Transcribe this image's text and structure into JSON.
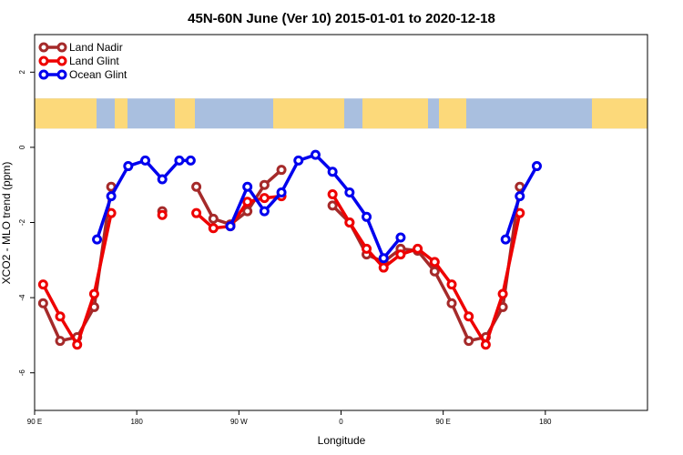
{
  "chart_data": {
    "type": "line",
    "title": "45N-60N June (Ver 10)   2015-01-01 to 2020-12-18",
    "xlabel": "Longitude",
    "ylabel": "XCO2 - MLO trend (ppm)",
    "xlim": [
      90,
      630
    ],
    "ylim": [
      -7,
      3
    ],
    "x_ticks": [
      {
        "value": 90,
        "label": "90 E"
      },
      {
        "value": 180,
        "label": "180"
      },
      {
        "value": 270,
        "label": "90 W"
      },
      {
        "value": 360,
        "label": "0"
      },
      {
        "value": 450,
        "label": "90 E"
      },
      {
        "value": 540,
        "label": "180"
      }
    ],
    "y_ticks": [
      {
        "value": -6,
        "label": "-6"
      },
      {
        "value": -4,
        "label": "-4"
      },
      {
        "value": -2,
        "label": "-2"
      },
      {
        "value": 0,
        "label": "0"
      },
      {
        "value": 2,
        "label": "2"
      }
    ],
    "map_band": {
      "ymin": 0.5,
      "ymax": 1.3,
      "ocean_color": "#a9bfdf",
      "land_color": "#fcd97a"
    },
    "legend_position": "top-left",
    "series": [
      {
        "name": "Land Nadir",
        "color": "#a52a2a",
        "points": [
          [
            97.5,
            -4.15
          ],
          [
            112.5,
            -5.15
          ],
          [
            127.5,
            -5.05
          ],
          [
            142.5,
            -4.25
          ],
          [
            157.5,
            -1.05
          ],
          null,
          [
            202.5,
            -1.7
          ],
          null,
          [
            232.5,
            -1.05
          ],
          [
            247.5,
            -1.9
          ],
          [
            262.5,
            -2.05
          ],
          [
            277.5,
            -1.7
          ],
          [
            292.5,
            -1.0
          ],
          [
            307.5,
            -0.6
          ],
          null,
          [
            352.5,
            -1.55
          ],
          [
            367.5,
            -2.0
          ],
          [
            382.5,
            -2.85
          ],
          [
            397.5,
            -3.05
          ],
          [
            412.5,
            -2.7
          ],
          [
            427.5,
            -2.75
          ],
          [
            442.5,
            -3.3
          ],
          [
            457.5,
            -4.15
          ],
          [
            472.5,
            -5.15
          ],
          [
            487.5,
            -5.05
          ],
          [
            502.5,
            -4.25
          ],
          [
            517.5,
            -1.05
          ]
        ]
      },
      {
        "name": "Land Glint",
        "color": "#ee0000",
        "points": [
          [
            97.5,
            -3.65
          ],
          [
            112.5,
            -4.5
          ],
          [
            127.5,
            -5.25
          ],
          [
            142.5,
            -3.9
          ],
          [
            157.5,
            -1.75
          ],
          null,
          [
            202.5,
            -1.8
          ],
          null,
          [
            232.5,
            -1.75
          ],
          [
            247.5,
            -2.15
          ],
          [
            262.5,
            -2.1
          ],
          [
            277.5,
            -1.45
          ],
          [
            292.5,
            -1.35
          ],
          [
            307.5,
            -1.3
          ],
          null,
          [
            352.5,
            -1.25
          ],
          [
            367.5,
            -2.0
          ],
          [
            382.5,
            -2.7
          ],
          [
            397.5,
            -3.2
          ],
          [
            412.5,
            -2.85
          ],
          [
            427.5,
            -2.7
          ],
          [
            442.5,
            -3.05
          ],
          [
            457.5,
            -3.65
          ],
          [
            472.5,
            -4.5
          ],
          [
            487.5,
            -5.25
          ],
          [
            502.5,
            -3.9
          ],
          [
            517.5,
            -1.75
          ]
        ]
      },
      {
        "name": "Ocean Glint",
        "color": "#0000ee",
        "points": [
          [
            145,
            -2.45
          ],
          [
            157.5,
            -1.3
          ],
          [
            172.5,
            -0.5
          ],
          [
            187.5,
            -0.35
          ],
          [
            202.5,
            -0.85
          ],
          [
            217.5,
            -0.35
          ],
          [
            227.5,
            -0.35
          ],
          null,
          [
            262.5,
            -2.1
          ],
          [
            277.5,
            -1.05
          ],
          [
            292.5,
            -1.7
          ],
          [
            307.5,
            -1.2
          ],
          [
            322.5,
            -0.35
          ],
          [
            337.5,
            -0.2
          ],
          [
            352.5,
            -0.65
          ],
          [
            367.5,
            -1.2
          ],
          [
            382.5,
            -1.85
          ],
          [
            397.5,
            -2.95
          ],
          [
            412.5,
            -2.4
          ],
          null,
          [
            505,
            -2.45
          ],
          [
            517.5,
            -1.3
          ],
          [
            532.5,
            -0.5
          ]
        ]
      }
    ]
  }
}
